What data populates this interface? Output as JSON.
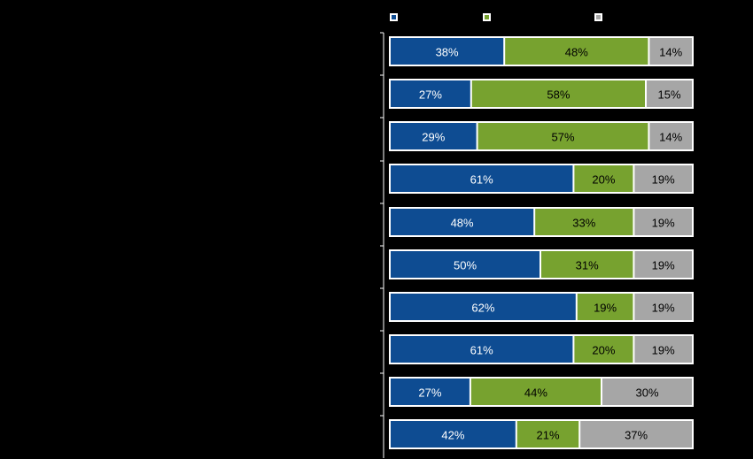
{
  "chart_data": {
    "type": "bar",
    "orientation": "horizontal",
    "stacked": true,
    "percent_stacked": true,
    "title": "",
    "xlabel": "",
    "ylabel": "",
    "xlim": [
      0,
      100
    ],
    "legend": "top",
    "grid": false,
    "categories": [
      "",
      "",
      "",
      "",
      "",
      "",
      "",
      "",
      "",
      ""
    ],
    "series": [
      {
        "color": "#0e4c92",
        "values": [
          38,
          27,
          29,
          61,
          48,
          50,
          62,
          61,
          27,
          42
        ]
      },
      {
        "color": "#77a22f",
        "values": [
          48,
          58,
          57,
          20,
          33,
          31,
          19,
          20,
          44,
          21
        ]
      },
      {
        "color": "#a6a6a6",
        "values": [
          14,
          15,
          14,
          19,
          19,
          19,
          19,
          19,
          30,
          37
        ]
      }
    ],
    "data_labels": [
      [
        "38%",
        "27%",
        "29%",
        "61%",
        "48%",
        "50%",
        "62%",
        "61%",
        "27%",
        "42%"
      ],
      [
        "48%",
        "58%",
        "57%",
        "20%",
        "33%",
        "31%",
        "19%",
        "20%",
        "44%",
        "21%"
      ],
      [
        "14%",
        "15%",
        "14%",
        "19%",
        "19%",
        "19%",
        "19%",
        "19%",
        "30%",
        "37%"
      ]
    ],
    "label_colors": [
      "#ffffff",
      "#000000",
      "#000000"
    ]
  }
}
